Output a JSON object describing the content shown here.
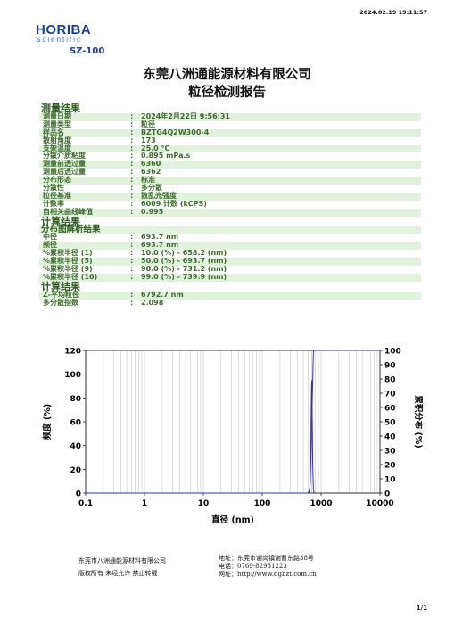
{
  "header": {
    "timestamp": "2024.02.19 19:11:57",
    "logo_text": "HORIBA",
    "logo_sub": "Scientific",
    "model": "SZ-100",
    "company": "东莞八洲通能源材料有限公司",
    "report_title": "粒径检测报告"
  },
  "results": {
    "section_title": "测量结果",
    "rows": [
      {
        "label": "测量日期",
        "value": "2024年2月22日  9:56:31"
      },
      {
        "label": "测量类型",
        "value": "粒径"
      },
      {
        "label": "样品名",
        "value": "BZTG4Q2W300-4"
      },
      {
        "label": "散射角度",
        "value": "173"
      },
      {
        "label": "支架温度",
        "value": "25.0 °C"
      },
      {
        "label": "分散介质粘度",
        "value": "0.895 mPa.s"
      },
      {
        "label": "测量前透过量",
        "value": "6360"
      },
      {
        "label": "测量后透过量",
        "value": "6362"
      },
      {
        "label": "分布形态",
        "value": "标准"
      },
      {
        "label": "分散性",
        "value": "多分散"
      },
      {
        "label": "粒径基准",
        "value": "散乱光强度"
      },
      {
        "label": "计数率",
        "value": "6009 计数  (kCPS)"
      },
      {
        "label": "自相关曲线峰值",
        "value": "0.995"
      }
    ],
    "calc_title": "计算结果",
    "dist_title": "分布图解析结果",
    "dist_rows": [
      {
        "label": "中径",
        "value": "693.7 nm"
      },
      {
        "label": "频径",
        "value": "693.7 nm"
      },
      {
        "label": "%累积半径     (1)",
        "value": "10.0   (%)  -  658.2   (nm)"
      },
      {
        "label": "%累积半径     (5)",
        "value": "50.0   (%)  -  693.7   (nm)"
      },
      {
        "label": "%累积半径     (9)",
        "value": "90.0   (%)  -  731.2   (nm)"
      },
      {
        "label": "%累积半径    (10)",
        "value": "99.0   (%)  -  739.9   (nm)"
      }
    ],
    "calc2_title": "计算结果",
    "calc_rows": [
      {
        "label": "Z-平均粒径",
        "value": "6792.7 nm"
      },
      {
        "label": "多分散指数",
        "value": "2.098"
      }
    ]
  },
  "chart_data": {
    "type": "line",
    "xlabel": "直径  (nm)",
    "ylabel_left": "频度   (%)",
    "ylabel_right": "累积分布   (%)",
    "x_scale": "log",
    "xlim": [
      0.1,
      10000
    ],
    "x_ticks": [
      "0.1",
      "1",
      "10",
      "100",
      "1000",
      "10000"
    ],
    "y_left_ticks": [
      "0",
      "20",
      "40",
      "60",
      "80",
      "100",
      "120"
    ],
    "y_right_ticks": [
      "0",
      "10",
      "20",
      "30",
      "40",
      "50",
      "60",
      "70",
      "80",
      "90",
      "100"
    ],
    "ylim_left": [
      0,
      120
    ],
    "ylim_right": [
      0,
      100
    ],
    "grid": true,
    "frequency": {
      "x": [
        560,
        620,
        650,
        670,
        685,
        693.7,
        705,
        720,
        740,
        760
      ],
      "y": [
        0,
        0,
        6,
        40,
        85,
        95,
        70,
        25,
        3,
        0
      ]
    },
    "cumulative": {
      "x": [
        0.1,
        600,
        640,
        658.2,
        693.7,
        731.2,
        739.9,
        760,
        10000
      ],
      "y": [
        0,
        0,
        2,
        10,
        50,
        90,
        99,
        100,
        100
      ]
    },
    "colors": {
      "line": "#3333aa",
      "grid": "#bbbbbb"
    }
  },
  "footer": {
    "company": "东莞市八洲通能源材料有限公司",
    "notice": "版权所有   未经允许   禁止转载",
    "address": "地址：东莞市谢岗镇谢曹东路38号",
    "phone": "电话：0769-82931223",
    "website": "网址：http://www.dgbzt.com.cn",
    "page": "1/1"
  }
}
